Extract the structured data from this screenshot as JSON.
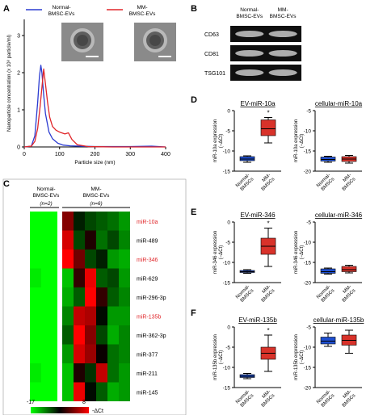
{
  "panels": {
    "A": {
      "letter": "A"
    },
    "B": {
      "letter": "B"
    },
    "C": {
      "letter": "C"
    },
    "D": {
      "letter": "D"
    },
    "E": {
      "letter": "E"
    },
    "F": {
      "letter": "F"
    }
  },
  "colors": {
    "normal": "#2b3bd1",
    "mm": "#e0262a",
    "box_blue": "#1e4fd1",
    "box_red": "#d8322a"
  },
  "chart_data": [
    {
      "panel": "A",
      "type": "line",
      "xlabel": "Particle size (nm)",
      "ylabel": "Nanoparticle concentration (x 10⁸ particle/ml)",
      "xlim": [
        0,
        400
      ],
      "ylim": [
        0,
        3
      ],
      "xticks": [
        0,
        100,
        200,
        300,
        400
      ],
      "yticks": [
        0,
        1,
        2,
        3
      ],
      "legend_position": "top",
      "series": [
        {
          "name": "Normal-BMSC-EVs",
          "color": "#2b3bd1",
          "x": [
            0,
            20,
            30,
            38,
            43,
            47,
            50,
            55,
            60,
            70,
            80,
            95,
            110,
            130,
            160,
            200,
            250,
            300,
            360,
            400
          ],
          "y": [
            0,
            0.02,
            0.3,
            1.2,
            1.9,
            2.2,
            2.0,
            1.4,
            0.9,
            0.4,
            0.22,
            0.1,
            0.05,
            0.03,
            0.02,
            0.01,
            0.01,
            0.01,
            0.02,
            0.0
          ]
        },
        {
          "name": "MM-BMSC-EVs",
          "color": "#e0262a",
          "x": [
            0,
            20,
            30,
            38,
            45,
            52,
            55,
            60,
            66,
            72,
            80,
            90,
            100,
            115,
            125,
            135,
            150,
            180,
            250,
            400
          ],
          "y": [
            0,
            0.02,
            0.15,
            0.5,
            1.1,
            1.8,
            2.1,
            1.7,
            1.2,
            0.8,
            0.55,
            0.45,
            0.4,
            0.35,
            0.38,
            0.2,
            0.06,
            0.01,
            0.0,
            0.0
          ]
        }
      ]
    },
    {
      "panel": "C",
      "type": "heatmap",
      "column_groups": [
        {
          "label": "Normal-\nBMSC-EVs",
          "n_label": "(n=2)",
          "columns": 2
        },
        {
          "label": "MM-\nBMSC-EVs",
          "n_label": "(n=6)",
          "columns": 6
        }
      ],
      "rows": [
        {
          "label": "miR-10a",
          "highlight": true
        },
        {
          "label": "miR-489",
          "highlight": false
        },
        {
          "label": "miR-346",
          "highlight": true
        },
        {
          "label": "miR-629",
          "highlight": false
        },
        {
          "label": "miR-296-3p",
          "highlight": false
        },
        {
          "label": "miR-135b",
          "highlight": true
        },
        {
          "label": "miR-362-3p",
          "highlight": false
        },
        {
          "label": "miR-377",
          "highlight": false
        },
        {
          "label": "miR-211",
          "highlight": false
        },
        {
          "label": "miR-145",
          "highlight": false
        }
      ],
      "values": [
        [
          -17,
          -17,
          2,
          -6,
          -8,
          -9,
          -10,
          -12
        ],
        [
          -17,
          -17,
          6,
          -8,
          -3,
          -10,
          -8,
          -11
        ],
        [
          -17,
          -17,
          8,
          1,
          -8,
          -6,
          -12,
          -13
        ],
        [
          -16,
          -17,
          -14,
          -2,
          7,
          -9,
          -8,
          -12
        ],
        [
          -17,
          -17,
          -13,
          -9,
          8,
          -2,
          -9,
          -11
        ],
        [
          -17,
          -17,
          -11,
          5,
          4,
          -5,
          -12,
          -12
        ],
        [
          -17,
          -17,
          -9,
          8,
          2,
          -8,
          -13,
          -11
        ],
        [
          -17,
          -17,
          -12,
          6,
          3,
          -4,
          -10,
          -11
        ],
        [
          -16,
          -17,
          -14,
          -3,
          -7,
          5,
          -10,
          -12
        ],
        [
          -17,
          -17,
          -14,
          7,
          -5,
          -9,
          -13,
          -12
        ]
      ],
      "scale_min_label": "-17",
      "scale_max_label": "8",
      "scale_unit": "-ΔCt",
      "vmin": -17,
      "vmax": 8
    },
    {
      "panel": "D",
      "type": "box",
      "title": "EV-miR-10a",
      "ylabel": "miR-10a expression\n(−ΔCt)",
      "ylim": [
        -15,
        0
      ],
      "yticks": [
        0,
        -5,
        -10,
        -15
      ],
      "star": "*",
      "categories": [
        "Normal-BMSCs",
        "MM-BMSCs"
      ],
      "boxes": [
        {
          "name": "Normal-BMSCs",
          "min": -12.8,
          "q1": -12.4,
          "median": -12.0,
          "q3": -11.4,
          "max": -11.2
        },
        {
          "name": "MM-BMSCs",
          "min": -8.0,
          "q1": -6.2,
          "median": -4.5,
          "q3": -2.3,
          "max": -1.7
        }
      ]
    },
    {
      "panel": "D2",
      "type": "box",
      "title": "cellular-miR-10a",
      "ylabel": "miR-10a expression\n(−ΔCt)",
      "ylim": [
        -20,
        -5
      ],
      "yticks": [
        -5,
        -10,
        -15,
        -20
      ],
      "categories": [
        "Normal-BMSCs",
        "MM-BMSCs"
      ],
      "boxes": [
        {
          "name": "Normal-BMSCs",
          "min": -17.8,
          "q1": -17.5,
          "median": -17.1,
          "q3": -16.5,
          "max": -16.3
        },
        {
          "name": "MM-BMSCs",
          "min": -18.0,
          "q1": -17.6,
          "median": -17.0,
          "q3": -16.4,
          "max": -16.1
        }
      ]
    },
    {
      "panel": "E",
      "type": "box",
      "title": "EV-miR-346",
      "ylabel": "miR-346 expression\n(−ΔCt)",
      "ylim": [
        -15,
        0
      ],
      "yticks": [
        0,
        -5,
        -10,
        -15
      ],
      "star": "*",
      "categories": [
        "Normal-BMSCs",
        "MM-BMSCs"
      ],
      "boxes": [
        {
          "name": "Normal-BMSCs",
          "min": -12.7,
          "q1": -12.5,
          "median": -12.3,
          "q3": -12.0,
          "max": -11.8
        },
        {
          "name": "MM-BMSCs",
          "min": -11.0,
          "q1": -8.0,
          "median": -6.0,
          "q3": -4.0,
          "max": -1.5
        }
      ]
    },
    {
      "panel": "E2",
      "type": "box",
      "title": "cellular-miR-346",
      "ylabel": "miR-346 expression\n(−ΔCt)",
      "ylim": [
        -20,
        -5
      ],
      "yticks": [
        -5,
        -10,
        -15,
        -20
      ],
      "categories": [
        "Normal-BMSCs",
        "MM-BMSCs"
      ],
      "boxes": [
        {
          "name": "Normal-BMSCs",
          "min": -17.9,
          "q1": -17.7,
          "median": -17.3,
          "q3": -16.6,
          "max": -16.4
        },
        {
          "name": "MM-BMSCs",
          "min": -17.6,
          "q1": -17.3,
          "median": -16.8,
          "q3": -16.0,
          "max": -15.7
        }
      ]
    },
    {
      "panel": "F",
      "type": "box",
      "title": "EV-miR-135b",
      "ylabel": "miR-135b expression\n(−ΔCt)",
      "ylim": [
        -15,
        0
      ],
      "yticks": [
        0,
        -5,
        -10,
        -15
      ],
      "star": "*",
      "categories": [
        "Normal-BMSCs",
        "MM-BMSCs"
      ],
      "boxes": [
        {
          "name": "Normal-BMSCs",
          "min": -12.8,
          "q1": -12.5,
          "median": -12.2,
          "q3": -11.8,
          "max": -11.5
        },
        {
          "name": "MM-BMSCs",
          "min": -11.0,
          "q1": -8.0,
          "median": -6.5,
          "q3": -5.0,
          "max": -2.0
        }
      ]
    },
    {
      "panel": "F2",
      "type": "box",
      "title": "cellular-miR-135b",
      "ylabel": "miR-135b expression\n(−ΔCt)",
      "ylim": [
        -20,
        -5
      ],
      "yticks": [
        -5,
        -10,
        -15,
        -20
      ],
      "categories": [
        "Normal-BMSCs",
        "MM-BMSCs"
      ],
      "boxes": [
        {
          "name": "Normal-BMSCs",
          "min": -9.8,
          "q1": -9.2,
          "median": -8.5,
          "q3": -7.5,
          "max": -6.5
        },
        {
          "name": "MM-BMSCs",
          "min": -11.5,
          "q1": -9.5,
          "median": -8.3,
          "q3": -7.0,
          "max": -5.8
        }
      ]
    }
  ],
  "western_blot": {
    "columns": [
      "Normal-\nBMSC-EVs",
      "MM-\nBMSC-EVs"
    ],
    "rows": [
      "CD63",
      "CD81",
      "TSG101"
    ]
  }
}
